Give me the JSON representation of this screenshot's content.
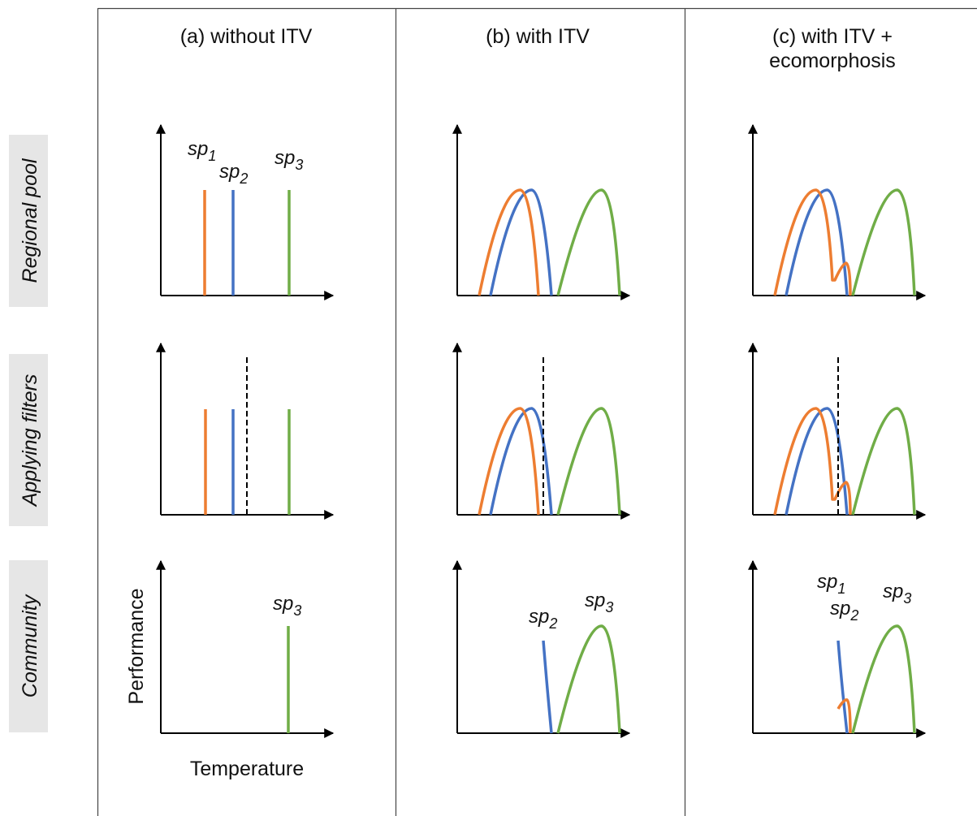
{
  "columns": [
    {
      "title_lines": [
        "(a) without ITV"
      ]
    },
    {
      "title_lines": [
        "(b) with ITV"
      ]
    },
    {
      "title_lines": [
        "(c) with ITV +",
        "ecomorphosis"
      ]
    }
  ],
  "rows": [
    {
      "label": "Regional pool"
    },
    {
      "label": "Applying filters"
    },
    {
      "label": "Community"
    }
  ],
  "axis_titles": {
    "y": "Performance",
    "x": "Temperature"
  },
  "species_labels": {
    "sp1": {
      "base": "sp",
      "sub": "1"
    },
    "sp2": {
      "base": "sp",
      "sub": "2"
    },
    "sp3": {
      "base": "sp",
      "sub": "3"
    }
  },
  "colors": {
    "sp1": "#ed7d31",
    "sp2": "#4472c4",
    "sp3": "#70ad47",
    "axis": "#000000",
    "row_label_bg": "#e6e6e6"
  }
}
